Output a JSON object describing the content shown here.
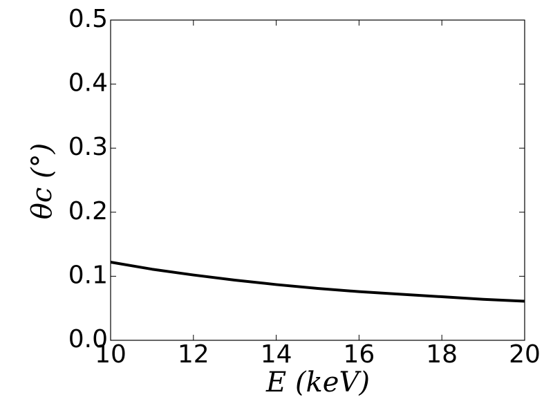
{
  "chart_data": {
    "type": "line",
    "xlabel": "E (keV)",
    "ylabel": "θc (°)",
    "x": [
      10,
      11,
      12,
      13,
      14,
      15,
      16,
      17,
      18,
      19,
      20
    ],
    "series": [
      {
        "color": "#000000",
        "values": [
          0.122,
          0.111,
          0.102,
          0.094,
          0.087,
          0.081,
          0.076,
          0.072,
          0.068,
          0.064,
          0.061
        ]
      }
    ],
    "xlim": [
      10,
      20
    ],
    "xticks": [
      10,
      12,
      14,
      16,
      18,
      20
    ],
    "ylim": [
      0,
      0.5
    ],
    "yticks": [
      {
        "value": 0,
        "label": "0.0"
      },
      0.1,
      0.2,
      0.3,
      0.4,
      0.5
    ],
    "grid": false
  }
}
